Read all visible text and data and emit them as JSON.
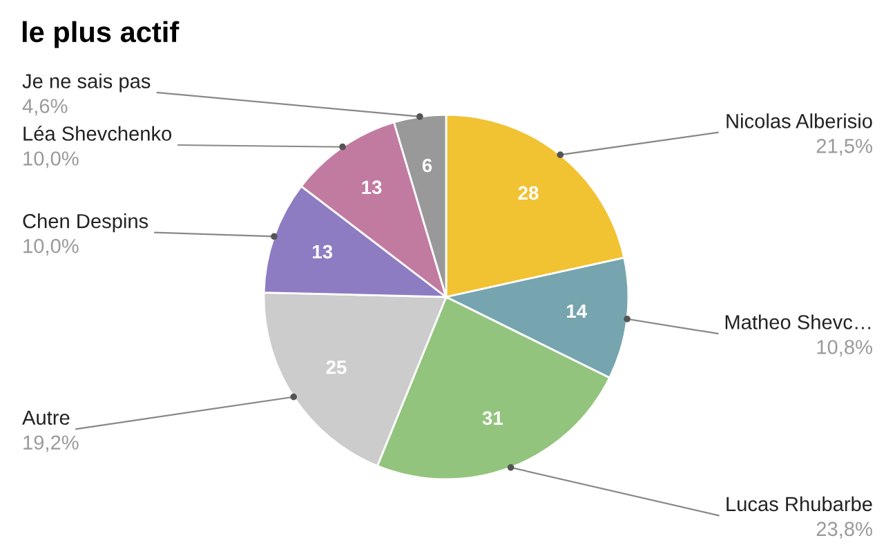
{
  "chart_data": {
    "type": "pie",
    "title": "le plus actif",
    "categories": [
      "Nicolas Alberisio",
      "Matheo Shevc…",
      "Lucas Rhubarbe",
      "Autre",
      "Chen Despins",
      "Léa Shevchenko",
      "Je ne sais pas"
    ],
    "values": [
      28,
      14,
      31,
      25,
      13,
      13,
      6
    ],
    "colors": [
      "#f1c232",
      "#76a5af",
      "#93c47d",
      "#cccccc",
      "#8e7cc3",
      "#c27ba0",
      "#999999"
    ],
    "annotations": [
      "21,5%",
      "10,8%",
      "23,8%",
      "19,2%",
      "10,0%",
      "10,0%",
      "4,6%"
    ],
    "data_labels": true,
    "legend": false
  }
}
